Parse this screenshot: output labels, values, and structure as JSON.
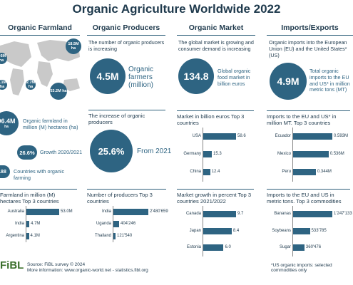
{
  "title": "Organic Agriculture Worldwide 2022",
  "columns": {
    "farmland": {
      "header": "Organic Farmland",
      "map_labels": [
        "18.5M ha",
        "9.6M ha",
        "2.7M ha",
        "8.1M ha",
        "53.2M ha"
      ],
      "stat1_value": "96.4M",
      "stat1_unit": "ha",
      "stat1_text": "Organic farmland in million (M) hectares (ha)",
      "stat2_value": "26.6%",
      "stat2_text": "Growth 2020/2021",
      "stat3_value": "188",
      "stat3_text": "Countries with organic farming"
    },
    "producers": {
      "header": "Organic Producers",
      "intro": "The number of organic producers is increasing",
      "big_value": "4.5M",
      "big_text": "Organic farmers (million)",
      "increase_text": "The increase of organic producers",
      "increase_value": "25.6%",
      "increase_from": "From 2021"
    },
    "market": {
      "header": "Organic Market",
      "intro": "The global market is growing and consumer demand is increasing",
      "big_value": "134.8",
      "big_text": "Global organic food market in billion euros"
    },
    "imports": {
      "header": "Imports/Exports",
      "intro": "Organic imports into the European Union (EU) and the United States* (US)",
      "big_value": "4.9M",
      "big_text": "Total organic imports to the EU and US* in million metric tons (MT)",
      "footnote": "*US organic imports: selected commodities only"
    }
  },
  "footer": {
    "logo": "FiBL",
    "source": "Source: FiBL survey © 2024",
    "more": "More information: www.organic-world.net - statistics.fibl.org"
  },
  "colors": {
    "primary": "#2e6482",
    "dark": "#1f3a4d"
  },
  "chart_data": [
    {
      "type": "bar",
      "id": "farmland",
      "heading": "Farmland in million (M) hectares Top 3 countries",
      "categories": [
        "Australia",
        "India",
        "Argentina"
      ],
      "values": [
        53.0,
        4.7,
        4.1
      ],
      "value_labels": [
        "53.0M",
        "4.7M",
        "4.1M"
      ]
    },
    {
      "type": "bar",
      "id": "producers",
      "heading": "Number of producers Top 3 countries",
      "categories": [
        "India",
        "Uganda",
        "Thailand"
      ],
      "values": [
        2480659,
        404246,
        121540
      ],
      "value_labels": [
        "2'480'659",
        "404'246",
        "121'540"
      ]
    },
    {
      "type": "bar",
      "id": "market_size",
      "heading": "Market in billion euros Top 3 countries",
      "categories": [
        "USA",
        "Germany",
        "China"
      ],
      "values": [
        58.6,
        15.3,
        12.4
      ],
      "value_labels": [
        "58.6",
        "15.3",
        "12.4"
      ]
    },
    {
      "type": "bar",
      "id": "market_growth",
      "heading": "Market growth in percent Top 3 countries 2021/2022",
      "categories": [
        "Canada",
        "Japan",
        "Estonia"
      ],
      "values": [
        9.7,
        8.4,
        6.0
      ],
      "value_labels": [
        "9.7",
        "8.4",
        "6.0"
      ]
    },
    {
      "type": "bar",
      "id": "imports_countries",
      "heading": "Imports to the EU and US* in million MT. Top 3 countries",
      "categories": [
        "Ecuador",
        "Mexico",
        "Peru"
      ],
      "values": [
        0.593,
        0.536,
        0.344
      ],
      "value_labels": [
        "0.593M",
        "0.536M",
        "0.344M"
      ]
    },
    {
      "type": "bar",
      "id": "imports_commodities",
      "heading": "Imports to the EU and US in metric tons. Top 3 commodities",
      "categories": [
        "Bananas",
        "Soybeans",
        "Sugar"
      ],
      "values": [
        1247133,
        533785,
        360476
      ],
      "value_labels": [
        "1'247'133",
        "533'785",
        "360'476"
      ]
    }
  ]
}
